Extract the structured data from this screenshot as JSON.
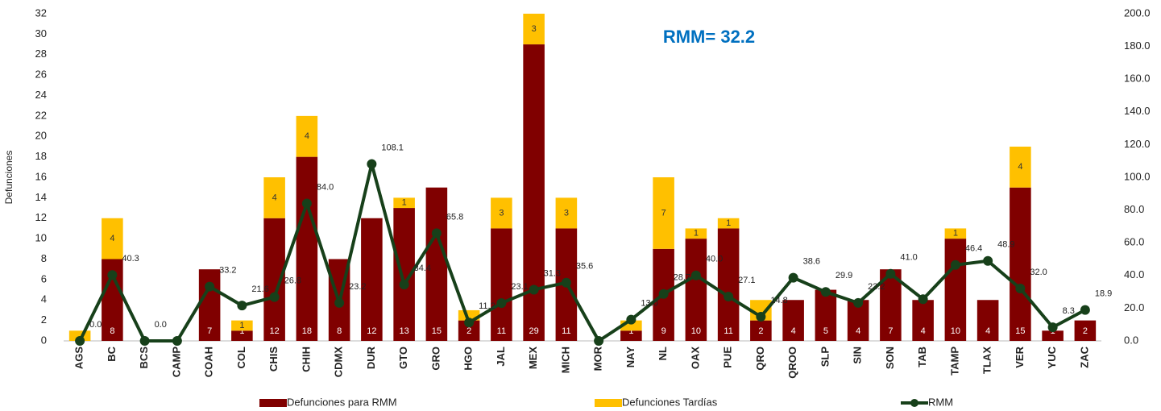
{
  "chart_data": {
    "type": "bar",
    "annotation": "RMM= 32.2",
    "ylabel": "Defunciones",
    "categories": [
      "AGS",
      "BC",
      "BCS",
      "CAMP",
      "COAH",
      "COL",
      "CHIS",
      "CHIH",
      "CDMX",
      "DUR",
      "GTO",
      "GRO",
      "HGO",
      "JAL",
      "MEX",
      "MICH",
      "MOR",
      "NAY",
      "NL",
      "OAX",
      "PUE",
      "QRO",
      "QROO",
      "SLP",
      "SIN",
      "SON",
      "TAB",
      "TAMP",
      "TLAX",
      "VER",
      "YUC",
      "ZAC"
    ],
    "series": [
      {
        "name": "Defunciones para RMM",
        "color": "#800000",
        "stack": true,
        "values": [
          0,
          8,
          0,
          0,
          7,
          1,
          12,
          18,
          8,
          12,
          13,
          15,
          2,
          11,
          29,
          11,
          0,
          1,
          9,
          10,
          11,
          2,
          4,
          5,
          4,
          7,
          4,
          10,
          4,
          15,
          1,
          2
        ],
        "value_labels": [
          null,
          "8",
          null,
          null,
          "7",
          "1",
          "12",
          "18",
          "8",
          "12",
          "13",
          "15",
          "2",
          "11",
          "29",
          "11",
          null,
          "1",
          "9",
          "10",
          "11",
          "2",
          "4",
          "5",
          "4",
          "7",
          "4",
          "10",
          "4",
          "15",
          "1",
          "2"
        ]
      },
      {
        "name": "Defunciones Tardías",
        "color": "#ffc000",
        "stack": true,
        "values": [
          1,
          4,
          0,
          0,
          0,
          1,
          4,
          4,
          0,
          0,
          1,
          0,
          1,
          3,
          3,
          3,
          0,
          1,
          7,
          1,
          1,
          2,
          0,
          0,
          0,
          0,
          0,
          1,
          0,
          4,
          0,
          0
        ],
        "value_labels": [
          null,
          "4",
          null,
          null,
          null,
          "1",
          "4",
          "4",
          null,
          null,
          "1",
          null,
          null,
          "3",
          "3",
          "3",
          null,
          null,
          "7",
          "1",
          "1",
          null,
          null,
          null,
          null,
          null,
          null,
          "1",
          null,
          "4",
          null,
          null
        ]
      },
      {
        "name": "RMM",
        "type": "line",
        "axis": "y2",
        "color": "#17401a",
        "values": [
          0.0,
          40.3,
          0.0,
          0.0,
          33.2,
          21.6,
          26.8,
          84.0,
          23.2,
          108.1,
          34.4,
          65.8,
          11.2,
          23.1,
          31.3,
          35.6,
          0.0,
          13.0,
          28.7,
          40.0,
          27.1,
          14.8,
          38.6,
          29.9,
          23.2,
          41.0,
          25.5,
          46.4,
          48.9,
          32.0,
          8.3,
          18.9
        ],
        "value_labels": [
          "0.0",
          "40.3",
          "0.0",
          null,
          "33.2",
          "21.6",
          "26.8",
          "84.0",
          "23.2",
          "108.1",
          "34.4",
          "65.8",
          "11.2",
          "23.1",
          "31.3",
          "35.6",
          null,
          "13.0",
          "28.7",
          "40.0",
          "27.1",
          "14.8",
          "38.6",
          "29.9",
          "23.2",
          "41.0",
          null,
          "46.4",
          "48.9",
          "32.0",
          "8.3",
          "18.9"
        ]
      }
    ],
    "ylim": [
      0,
      32
    ],
    "yticks": [
      0,
      2,
      4,
      6,
      8,
      10,
      12,
      14,
      16,
      18,
      20,
      22,
      24,
      26,
      28,
      30,
      32
    ],
    "y2lim": [
      0,
      200
    ],
    "y2ticks": [
      {
        "value": 0,
        "label": "0.0"
      },
      {
        "value": 20,
        "label": "20.0"
      },
      {
        "value": 40,
        "label": "40.0"
      },
      {
        "value": 60,
        "label": "60.0"
      },
      {
        "value": 80,
        "label": "80.0"
      },
      {
        "value": 100,
        "label": "100.0"
      },
      {
        "value": 120,
        "label": "120.0"
      },
      {
        "value": 140,
        "label": "140.0"
      },
      {
        "value": 160,
        "label": "160.0"
      },
      {
        "value": 180,
        "label": "180.0"
      },
      {
        "value": 200,
        "label": "200.0"
      }
    ],
    "legend": "bottom"
  }
}
